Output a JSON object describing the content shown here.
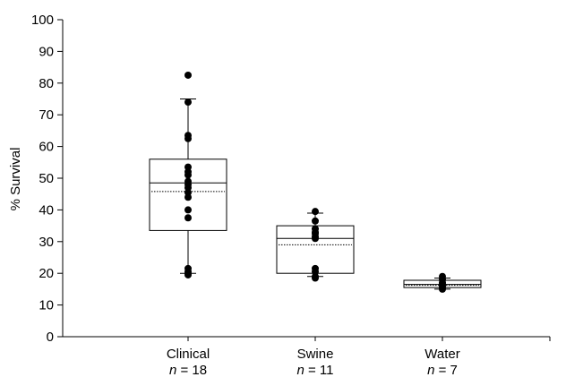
{
  "chart_data": {
    "type": "box",
    "ylabel": "% Survival",
    "ylim": [
      0,
      100
    ],
    "yticks": [
      0,
      10,
      20,
      30,
      40,
      50,
      60,
      70,
      80,
      90,
      100
    ],
    "groups": [
      {
        "label": "Clinical",
        "n_prefix": "n",
        "n_text": " = 18",
        "whisker_low": 20,
        "q1": 33.5,
        "median": 48.5,
        "mean": 45.8,
        "q3": 56,
        "whisker_high": 75,
        "points": [
          82.5,
          74,
          63.5,
          62.5,
          53.5,
          52,
          51,
          49,
          48,
          47,
          45.5,
          44,
          40,
          37.5,
          21.5,
          20.5,
          20,
          19.5
        ]
      },
      {
        "label": "Swine",
        "n_prefix": "n",
        "n_text": " = 11",
        "whisker_low": 19,
        "q1": 20,
        "median": 31,
        "mean": 29,
        "q3": 35,
        "whisker_high": 39,
        "points": [
          39.5,
          36.5,
          34,
          33,
          32.5,
          31.5,
          31,
          21.5,
          20.5,
          19,
          18.5
        ]
      },
      {
        "label": "Water",
        "n_prefix": "n",
        "n_text": " = 7",
        "whisker_low": 15,
        "q1": 15.5,
        "median": 16.5,
        "mean": 16.2,
        "q3": 17.8,
        "whisker_high": 18.5,
        "points": [
          19,
          18,
          17,
          16.5,
          16,
          15.5,
          15
        ]
      }
    ],
    "grid": false,
    "legend": "none"
  }
}
